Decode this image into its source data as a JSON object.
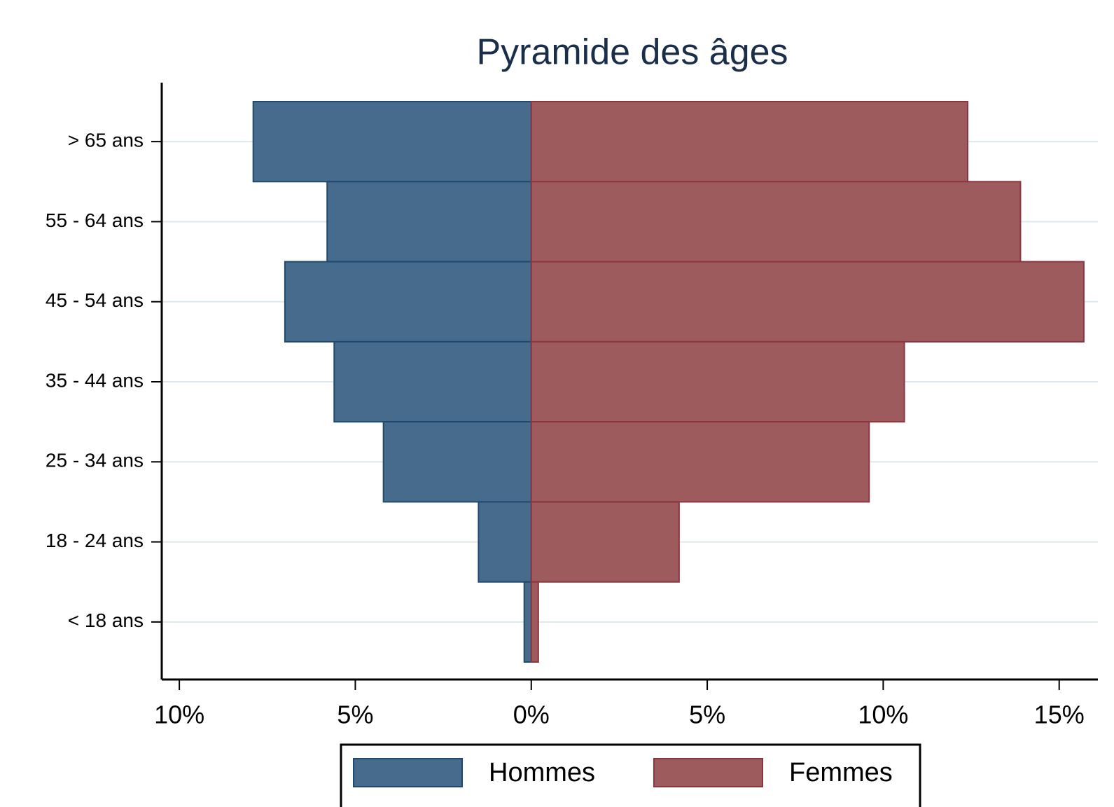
{
  "chart_data": {
    "type": "pyramid",
    "title": "Pyramide des âges",
    "categories": [
      "> 65 ans",
      "55 - 64 ans",
      "45 - 54 ans",
      "35 - 44 ans",
      "25 - 34 ans",
      "18 - 24 ans",
      "< 18 ans"
    ],
    "series": [
      {
        "name": "Hommes",
        "color": "#466b8c",
        "values": [
          -7.9,
          -5.8,
          -7.0,
          -5.6,
          -4.2,
          -1.5,
          -0.2
        ]
      },
      {
        "name": "Femmes",
        "color": "#9e5b5e",
        "values": [
          12.4,
          13.9,
          15.7,
          10.6,
          9.6,
          4.2,
          0.2
        ]
      }
    ],
    "xlim": [
      -10.5,
      16.1
    ],
    "xticks": [
      {
        "value": -10,
        "label": "10%"
      },
      {
        "value": -5,
        "label": "5%"
      },
      {
        "value": 0,
        "label": "0%"
      },
      {
        "value": 5,
        "label": "5%"
      },
      {
        "value": 10,
        "label": "10%"
      },
      {
        "value": 15,
        "label": "15%"
      }
    ],
    "grid": true,
    "legend": "bottom"
  }
}
